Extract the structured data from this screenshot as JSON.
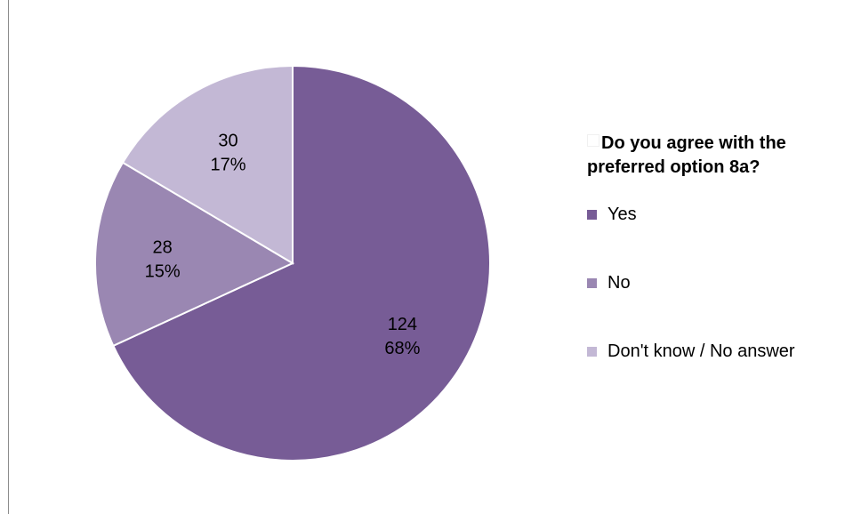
{
  "chart_data": {
    "type": "pie",
    "legend_title": "Do you agree with the preferred option 8a?",
    "legend_position": "right",
    "slices": [
      {
        "name": "Yes",
        "value": 124,
        "percent": "68%",
        "color": "#775c96"
      },
      {
        "name": "No",
        "value": 28,
        "percent": "15%",
        "color": "#9a87b2"
      },
      {
        "name": "Don't know / No answer",
        "value": 30,
        "percent": "17%",
        "color": "#c3b8d5"
      }
    ]
  }
}
